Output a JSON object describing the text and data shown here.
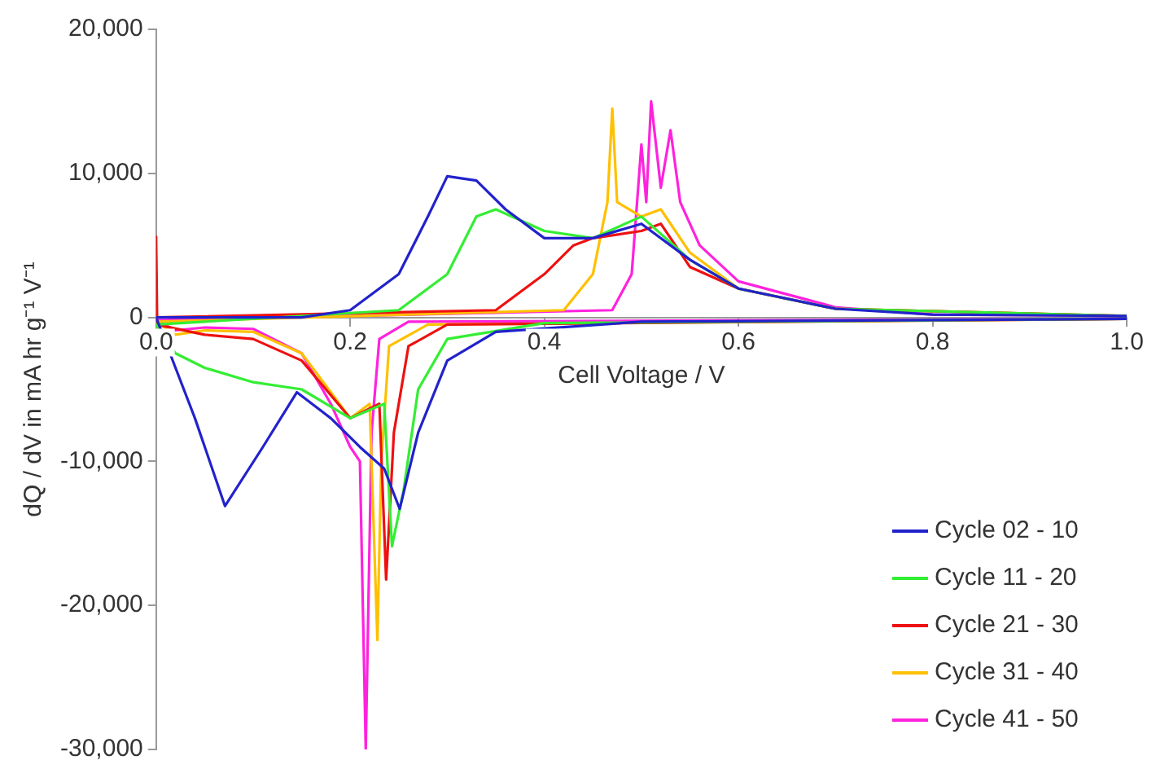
{
  "chart_data": {
    "type": "line",
    "xlabel": "Cell Voltage / V",
    "ylabel": "dQ / dV in mA hr g⁻¹ V⁻¹",
    "xlim": [
      0,
      1
    ],
    "xticks": [
      {
        "value": 0,
        "label": "0.0"
      },
      {
        "value": 0.2,
        "label": "0.2"
      },
      {
        "value": 0.4,
        "label": "0.4"
      },
      {
        "value": 0.6,
        "label": "0.6"
      },
      {
        "value": 0.8,
        "label": "0.8"
      },
      {
        "value": 1,
        "label": "1.0"
      }
    ],
    "ylim": [
      -30000,
      20000
    ],
    "yticks": [
      {
        "value": -30000,
        "label": "-30,000"
      },
      {
        "value": -20000,
        "label": "-20,000"
      },
      {
        "value": -10000,
        "label": "-10,000"
      },
      {
        "value": 0,
        "label": "0"
      },
      {
        "value": 10000,
        "label": "10,000"
      },
      {
        "value": 20000,
        "label": "20,000"
      }
    ],
    "grid": false,
    "legend": "bottom right",
    "marker": "none",
    "line_style": "solid",
    "series": [
      {
        "name": "Cycle 02 - 10",
        "color": "#2222cc",
        "x": [
          1,
          0.5,
          0.35,
          0.3,
          0.27,
          0.251,
          0.235,
          0.21,
          0.18,
          0.145,
          0.11,
          0.071,
          0.04,
          0.02,
          0,
          0.15,
          0.2,
          0.25,
          0.28,
          0.3,
          0.33,
          0.36,
          0.4,
          0.45,
          0.5,
          0.55,
          0.6,
          0.7,
          0.8,
          1
        ],
        "values": [
          -100,
          -300,
          -1000,
          -3000,
          -8000,
          -13300,
          -10500,
          -9000,
          -7000,
          -5200,
          -9000,
          -13100,
          -7000,
          -3500,
          0,
          0,
          500,
          3000,
          7000,
          9800,
          9500,
          7500,
          5500,
          5500,
          6500,
          4000,
          2000,
          600,
          200,
          100
        ]
      },
      {
        "name": "Cycle 11 - 20",
        "color": "#33ee33",
        "x": [
          1,
          0.4,
          0.3,
          0.27,
          0.255,
          0.243,
          0.235,
          0.2,
          0.15,
          0.1,
          0.05,
          0.02,
          0,
          0.25,
          0.3,
          0.33,
          0.35,
          0.4,
          0.45,
          0.5,
          0.55,
          0.6,
          0.7,
          1
        ],
        "values": [
          -100,
          -400,
          -1500,
          -5000,
          -12000,
          -15900,
          -6000,
          -7000,
          -5000,
          -4500,
          -3500,
          -2500,
          -500,
          500,
          3000,
          7000,
          7500,
          6000,
          5500,
          7000,
          4000,
          2000,
          600,
          100
        ]
      },
      {
        "name": "Cycle 21 - 30",
        "color": "#ee1111",
        "x": [
          1,
          0.3,
          0.26,
          0.245,
          0.237,
          0.23,
          0.2,
          0.15,
          0.1,
          0.05,
          0,
          0,
          0.001,
          0.35,
          0.4,
          0.43,
          0.45,
          0.5,
          0.52,
          0.55,
          0.6,
          0.7,
          1
        ],
        "values": [
          -100,
          -500,
          -2000,
          -8000,
          -18200,
          -6000,
          -7000,
          -3000,
          -1500,
          -1200,
          -500,
          5600,
          0,
          500,
          3000,
          5000,
          5500,
          6000,
          6500,
          3500,
          2000,
          600,
          100
        ]
      },
      {
        "name": "Cycle 31 - 40",
        "color": "#ffc000",
        "x": [
          1,
          0.28,
          0.24,
          0.232,
          0.228,
          0.22,
          0.2,
          0.15,
          0.1,
          0.05,
          0.02,
          0,
          0.42,
          0.45,
          0.465,
          0.47,
          0.475,
          0.5,
          0.52,
          0.55,
          0.6,
          0.7,
          1
        ],
        "values": [
          -100,
          -500,
          -2000,
          -10000,
          -22400,
          -6000,
          -7000,
          -2500,
          -1000,
          -900,
          -1200,
          -300,
          500,
          3000,
          8000,
          14500,
          8000,
          7000,
          7500,
          4500,
          2000,
          600,
          100
        ]
      },
      {
        "name": "Cycle 41 - 50",
        "color": "#ff22dd",
        "x": [
          1,
          0.26,
          0.23,
          0.222,
          0.216,
          0.21,
          0.2,
          0.18,
          0.15,
          0.1,
          0.05,
          0.02,
          0,
          0.47,
          0.49,
          0.5,
          0.505,
          0.51,
          0.52,
          0.53,
          0.54,
          0.56,
          0.6,
          0.7,
          0.8,
          1
        ],
        "values": [
          -100,
          -300,
          -1500,
          -8000,
          -30000,
          -10000,
          -9000,
          -6000,
          -2500,
          -800,
          -700,
          -900,
          -200,
          500,
          3000,
          12000,
          8000,
          15000,
          9000,
          13000,
          8000,
          5000,
          2500,
          700,
          200,
          100
        ]
      }
    ]
  }
}
